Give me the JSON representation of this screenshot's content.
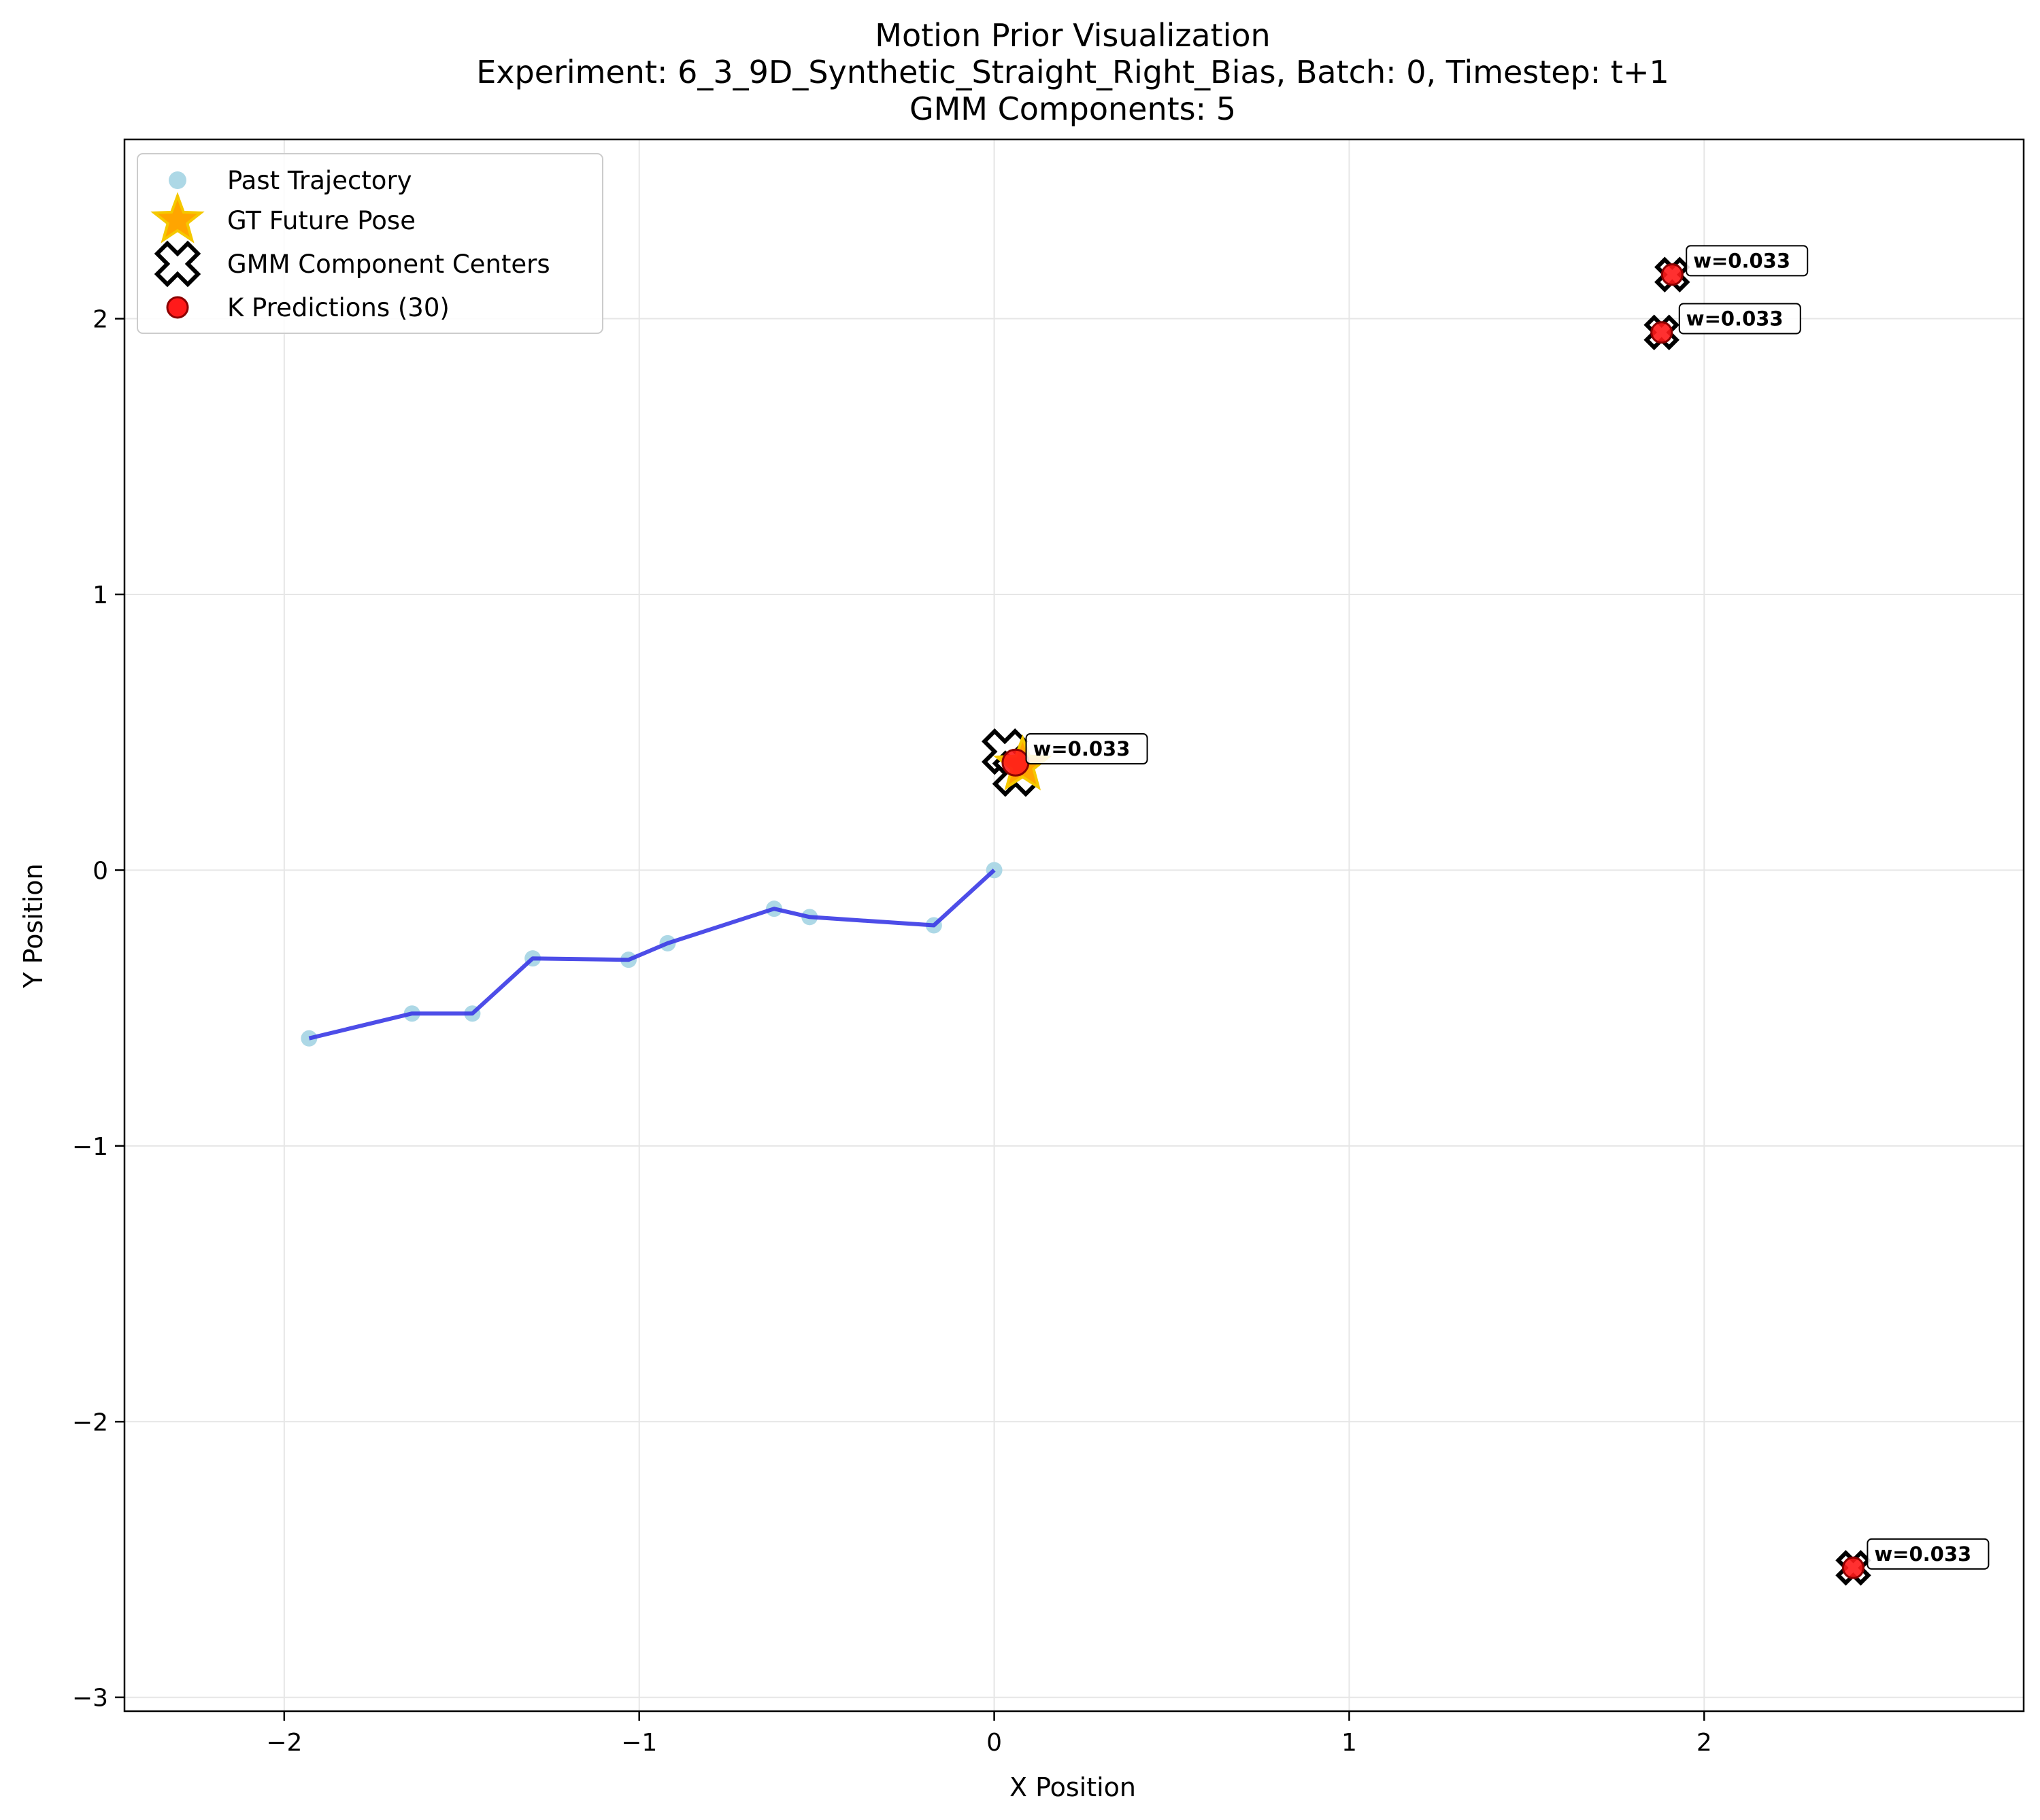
{
  "chart_data": {
    "type": "scatter",
    "title": "Motion Prior Visualization",
    "subtitle_lines": [
      "Experiment: 6_3_9D_Synthetic_Straight_Right_Bias, Batch: 0, Timestep: t+1",
      "GMM Components: 5"
    ],
    "xlabel": "X Position",
    "ylabel": "Y Position",
    "xlim": [
      -2.45,
      2.9
    ],
    "ylim": [
      -3.05,
      2.65
    ],
    "xticks": [
      -2,
      -1,
      0,
      1,
      2
    ],
    "yticks": [
      -3,
      -2,
      -1,
      0,
      1,
      2
    ],
    "xtick_labels": [
      "−2",
      "−1",
      "0",
      "1",
      "2"
    ],
    "ytick_labels": [
      "−3",
      "−2",
      "−1",
      "0",
      "1",
      "2"
    ],
    "grid": true,
    "legend_position": "top-left",
    "legend": [
      {
        "label": "Past Trajectory",
        "marker": "circle-lightblue"
      },
      {
        "label": "GT Future Pose",
        "marker": "star-orange"
      },
      {
        "label": "GMM Component Centers",
        "marker": "x-outline"
      },
      {
        "label": "K Predictions (30)",
        "marker": "circle-red"
      }
    ],
    "past_trajectory": {
      "x": [
        -1.93,
        -1.64,
        -1.47,
        -1.3,
        -1.03,
        -0.92,
        -0.62,
        -0.52,
        -0.17,
        0.0
      ],
      "y": [
        -0.61,
        -0.52,
        -0.52,
        -0.32,
        -0.325,
        -0.265,
        -0.14,
        -0.17,
        -0.2,
        0.0
      ]
    },
    "gt_future_pose": {
      "x": 0.08,
      "y": 0.38
    },
    "gmm_centers": {
      "x": [
        0.03,
        0.06,
        1.88,
        1.91,
        2.42
      ],
      "y": [
        0.43,
        0.35,
        1.95,
        2.16,
        -2.53
      ]
    },
    "k_predictions": {
      "x": [
        0.06,
        1.88,
        1.91,
        2.42
      ],
      "y": [
        0.39,
        1.95,
        2.16,
        -2.53
      ]
    },
    "annotations": [
      {
        "text": "w=0.033",
        "x": 0.09,
        "y": 0.44
      },
      {
        "text": "w=0.033",
        "x": 1.93,
        "y": 2.0
      },
      {
        "text": "w=0.033",
        "x": 1.95,
        "y": 2.21
      },
      {
        "text": "w=0.033",
        "x": 2.46,
        "y": -2.48
      }
    ],
    "colors": {
      "trajectory_line": "#3a3ae6",
      "past_points": "#add8e6",
      "gt_star_fill": "#ffa500",
      "gt_star_edge": "#f5c800",
      "prediction_fill": "#ff1a1a",
      "prediction_edge": "#8b0000",
      "grid": "#e6e6e6"
    }
  }
}
